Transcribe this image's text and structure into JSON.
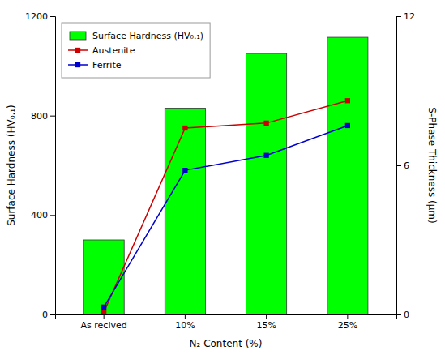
{
  "chart_data": {
    "type": "bar",
    "xlabel": "N₂ Content (%)",
    "ylabel": "Surface Hardness (HV₀.₁)",
    "y2label": "S-Phase Thickness (μm)",
    "categories": [
      "As recived",
      "10%",
      "15%",
      "25%"
    ],
    "series": [
      {
        "name": "Surface Hardness (HV₀.₁)",
        "type": "bar",
        "color": "#00FF00",
        "values": [
          300,
          830,
          1050,
          1115
        ]
      },
      {
        "name": "Austenite",
        "type": "line",
        "axis": "y2",
        "color": "#CC0000",
        "marker": "square",
        "values": [
          0.1,
          7.5,
          7.7,
          8.6
        ]
      },
      {
        "name": "Ferrite",
        "type": "line",
        "axis": "y2",
        "color": "#0000CC",
        "marker": "square",
        "values": [
          0.3,
          5.8,
          6.4,
          7.6
        ]
      }
    ],
    "ylim": [
      0,
      1200
    ],
    "yticks": [
      0,
      400,
      800,
      1200
    ],
    "y2lim": [
      0,
      12
    ],
    "y2ticks": [
      0,
      6,
      12
    ],
    "legend": "upper left"
  }
}
